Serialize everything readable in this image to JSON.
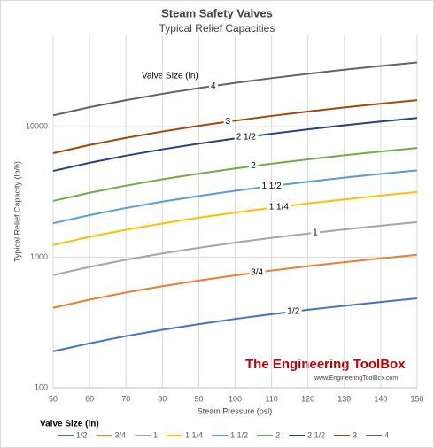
{
  "chart_data": {
    "type": "line",
    "title": "Steam Safety Valves",
    "subtitle": "Typical Relief Capacities",
    "x_label": "Steam Pressure (psi)",
    "y_label": "Typical Relief Capacity (lb/h)",
    "annotation": "Valve Size (in)",
    "legend_title": "Valve Size (in)",
    "watermark": "The Engineering ToolBox",
    "watermark_url": "www.EngineeringToolBox.com",
    "x": [
      50,
      60,
      70,
      80,
      90,
      100,
      110,
      120,
      130,
      140,
      150
    ],
    "xlim": [
      50,
      150
    ],
    "xticks": [
      50,
      60,
      70,
      80,
      90,
      100,
      110,
      120,
      130,
      140,
      150
    ],
    "ylim": [
      100,
      50000
    ],
    "yticks": [
      100,
      1000,
      10000
    ],
    "log_y": true,
    "grid": true,
    "legend": "bottom",
    "series": [
      {
        "name": "1/2",
        "color": "#4472c4",
        "values": [
          190,
          219,
          249,
          278,
          307,
          337,
          366,
          396,
          425,
          454,
          484
        ]
      },
      {
        "name": "3/4",
        "color": "#ed7d31",
        "values": [
          410,
          473,
          537,
          600,
          663,
          727,
          790,
          854,
          917,
          980,
          1044
        ]
      },
      {
        "name": "1",
        "color": "#a5a5a5",
        "values": [
          730,
          843,
          956,
          1069,
          1181,
          1294,
          1407,
          1520,
          1633,
          1745,
          1858
        ]
      },
      {
        "name": "1 1/4",
        "color": "#ffc000",
        "values": [
          1240,
          1432,
          1623,
          1815,
          2007,
          2198,
          2390,
          2582,
          2773,
          2965,
          3157
        ]
      },
      {
        "name": "1 1/2",
        "color": "#5b9bd5",
        "values": [
          1820,
          2101,
          2383,
          2664,
          2945,
          3226,
          3508,
          3789,
          4070,
          4352,
          4633
        ]
      },
      {
        "name": "2",
        "color": "#70ad47",
        "values": [
          2700,
          3117,
          3535,
          3952,
          4369,
          4787,
          5204,
          5621,
          6039,
          6456,
          6873
        ]
      },
      {
        "name": "2 1/2",
        "color": "#264478",
        "values": [
          4580,
          5288,
          5996,
          6704,
          7411,
          8119,
          8827,
          9535,
          10243,
          10951,
          11659
        ]
      },
      {
        "name": "3",
        "color": "#9e480e",
        "values": [
          6270,
          7239,
          8208,
          9177,
          10146,
          11115,
          12085,
          13054,
          14023,
          14992,
          15961
        ]
      },
      {
        "name": "4",
        "color": "#636363",
        "values": [
          12200,
          14086,
          15971,
          17857,
          19742,
          21628,
          23514,
          25399,
          27285,
          29170,
          31056
        ]
      }
    ]
  }
}
